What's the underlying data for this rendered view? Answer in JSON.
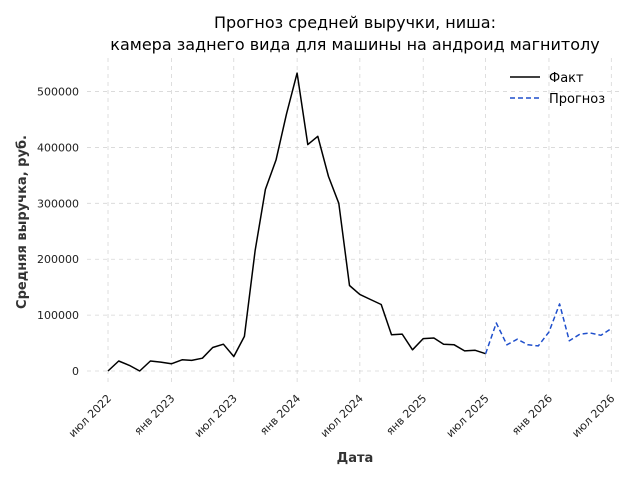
{
  "chart_data": {
    "type": "line",
    "title_line1": "Прогноз средней выручки, ниша:",
    "title_line2": "камера заднего вида для машины на андроид магнитолу",
    "xlabel": "Дата",
    "ylabel": "Средняя выручка, руб.",
    "x_ticks": [
      {
        "label": "июл 2022",
        "date": "2022-07-01"
      },
      {
        "label": "янв 2023",
        "date": "2023-01-01"
      },
      {
        "label": "июл 2023",
        "date": "2023-07-01"
      },
      {
        "label": "янв 2024",
        "date": "2024-01-01"
      },
      {
        "label": "июл 2024",
        "date": "2024-07-01"
      },
      {
        "label": "янв 2025",
        "date": "2025-01-01"
      },
      {
        "label": "июл 2025",
        "date": "2025-07-01"
      },
      {
        "label": "янв 2026",
        "date": "2026-01-01"
      },
      {
        "label": "июл 2026",
        "date": "2026-07-01"
      }
    ],
    "y_ticks": [
      0,
      100000,
      200000,
      300000,
      400000,
      500000
    ],
    "y_tick_labels": [
      "0",
      "100000",
      "200000",
      "300000",
      "400000",
      "500000"
    ],
    "xlim": [
      "2022-05-01",
      "2026-08-01"
    ],
    "ylim": [
      -25000,
      560000
    ],
    "grid": true,
    "legend_position": "top-right",
    "series": [
      {
        "name": "Факт",
        "color": "#000000",
        "style": "solid",
        "points": [
          [
            "2022-07-01",
            0
          ],
          [
            "2022-08-01",
            18000
          ],
          [
            "2022-09-01",
            10000
          ],
          [
            "2022-10-01",
            0
          ],
          [
            "2022-11-01",
            18000
          ],
          [
            "2022-12-01",
            16000
          ],
          [
            "2023-01-01",
            13000
          ],
          [
            "2023-02-01",
            20000
          ],
          [
            "2023-03-01",
            19000
          ],
          [
            "2023-04-01",
            23000
          ],
          [
            "2023-05-01",
            42000
          ],
          [
            "2023-06-01",
            48000
          ],
          [
            "2023-07-01",
            26000
          ],
          [
            "2023-08-01",
            62000
          ],
          [
            "2023-09-01",
            215000
          ],
          [
            "2023-10-01",
            325000
          ],
          [
            "2023-11-01",
            378000
          ],
          [
            "2023-12-01",
            460000
          ],
          [
            "2024-01-01",
            533000
          ],
          [
            "2024-02-01",
            405000
          ],
          [
            "2024-03-01",
            420000
          ],
          [
            "2024-04-01",
            348000
          ],
          [
            "2024-05-01",
            300000
          ],
          [
            "2024-06-01",
            153000
          ],
          [
            "2024-07-01",
            137000
          ],
          [
            "2024-08-01",
            128000
          ],
          [
            "2024-09-01",
            119000
          ],
          [
            "2024-10-01",
            65000
          ],
          [
            "2024-11-01",
            66000
          ],
          [
            "2024-12-01",
            38000
          ],
          [
            "2025-01-01",
            58000
          ],
          [
            "2025-02-01",
            59000
          ],
          [
            "2025-03-01",
            48000
          ],
          [
            "2025-04-01",
            47000
          ],
          [
            "2025-05-01",
            36000
          ],
          [
            "2025-06-01",
            37000
          ],
          [
            "2025-07-01",
            31000
          ]
        ]
      },
      {
        "name": "Прогноз",
        "color": "#1f4fcc",
        "style": "dashed",
        "points": [
          [
            "2025-07-01",
            31000
          ],
          [
            "2025-08-01",
            86000
          ],
          [
            "2025-09-01",
            47000
          ],
          [
            "2025-10-01",
            57000
          ],
          [
            "2025-11-01",
            47000
          ],
          [
            "2025-12-01",
            45000
          ],
          [
            "2026-01-01",
            70000
          ],
          [
            "2026-02-01",
            120000
          ],
          [
            "2026-03-01",
            54000
          ],
          [
            "2026-04-01",
            66000
          ],
          [
            "2026-05-01",
            68000
          ],
          [
            "2026-06-01",
            64000
          ],
          [
            "2026-07-01",
            76000
          ]
        ]
      }
    ]
  }
}
